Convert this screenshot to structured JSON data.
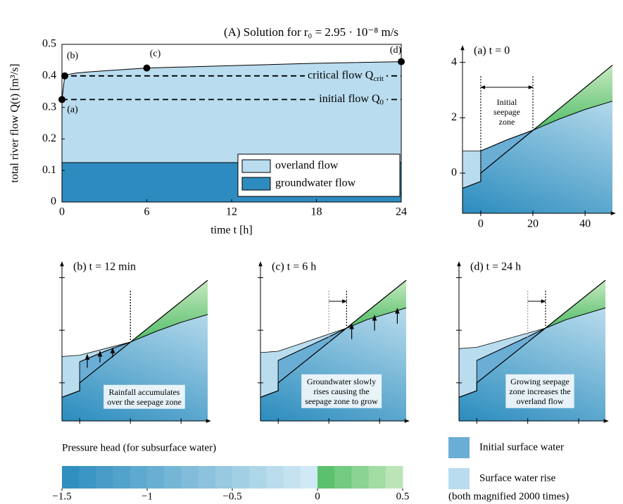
{
  "chart_data": [
    {
      "type": "area",
      "title": "(A) Solution for r₀ = 2.95 · 10⁻⁸ m/s",
      "x_label": "time t [h]",
      "y_label": "total river flow Q(t) [m³/s]",
      "x": [
        0,
        0.2,
        0.5,
        1,
        2,
        4,
        6,
        10,
        14,
        18,
        24
      ],
      "series": [
        {
          "name": "overland flow",
          "color": "#b9dcee",
          "values": [
            0.2,
            0.275,
            0.28,
            0.284,
            0.288,
            0.294,
            0.3,
            0.305,
            0.31,
            0.315,
            0.32
          ]
        },
        {
          "name": "groundwater flow",
          "color": "#2e8bc0",
          "values": [
            0.125,
            0.125,
            0.125,
            0.125,
            0.125,
            0.125,
            0.125,
            0.125,
            0.125,
            0.125,
            0.125
          ]
        }
      ],
      "stacked": true,
      "xlim": [
        0,
        24
      ],
      "ylim": [
        0,
        0.5
      ],
      "xticks": [
        0,
        6,
        12,
        18,
        24
      ],
      "yticks": [
        0,
        0.1,
        0.2,
        0.3,
        0.4,
        0.5
      ],
      "reference_lines": [
        {
          "value": 0.4,
          "label": "critical flow Q",
          "subscript": "crit"
        },
        {
          "value": 0.325,
          "label": "initial flow Q",
          "subscript": "0"
        }
      ],
      "points": [
        {
          "label": "(a)",
          "x": 0,
          "y": 0.325
        },
        {
          "label": "(b)",
          "x": 0.2,
          "y": 0.4
        },
        {
          "label": "(c)",
          "x": 6,
          "y": 0.425
        },
        {
          "label": "(d)",
          "x": 24,
          "y": 0.445
        }
      ],
      "legend": "lower right"
    },
    {
      "type": "profile",
      "title": "(a) t = 0",
      "xlim": [
        -7,
        50.5
      ],
      "ylim": [
        -1.45,
        4.6
      ],
      "xticks": [
        0,
        20,
        40
      ],
      "yticks": [
        0,
        2,
        4
      ],
      "tick_labels": true,
      "terrain": {
        "x": [
          -7,
          0,
          0,
          50.5
        ],
        "y": [
          -0.55,
          -0.3,
          0,
          3.9
        ]
      },
      "water_table": {
        "x": [
          0,
          10,
          20,
          30,
          40,
          50.5
        ],
        "y": [
          0.8,
          1.2,
          1.55,
          1.95,
          2.3,
          2.6
        ]
      },
      "surface_top": {
        "x": [
          -7,
          0
        ],
        "y": [
          0.8,
          0.8
        ]
      },
      "seepage_lines": [
        0,
        20
      ],
      "annotation": [
        "Initial",
        "seepage",
        "zone"
      ]
    },
    {
      "type": "profile",
      "title": "(b) t = 12 min",
      "xlim": [
        -7,
        50.5
      ],
      "ylim": [
        -1.45,
        4.6
      ],
      "xticks": [
        0,
        20,
        40
      ],
      "yticks": [
        0,
        2,
        4
      ],
      "tick_labels": false,
      "terrain": {
        "x": [
          -7,
          0,
          0,
          50.5
        ],
        "y": [
          -0.55,
          -0.3,
          0,
          3.9
        ]
      },
      "water_table": {
        "x": [
          0,
          10,
          20,
          30,
          40,
          50.5
        ],
        "y": [
          0.8,
          1.2,
          1.55,
          1.95,
          2.3,
          2.6
        ]
      },
      "surface_top": {
        "x": [
          -7,
          0,
          20
        ],
        "y": [
          1.0,
          1.05,
          1.55
        ]
      },
      "seepage_lines": [
        20,
        20
      ],
      "annotation": [
        "Rainfall accumulates",
        "over the seepage zone"
      ]
    },
    {
      "type": "profile",
      "title": "(c) t = 6 h",
      "xlim": [
        -7,
        50.5
      ],
      "ylim": [
        -1.45,
        4.6
      ],
      "xticks": [
        0,
        20,
        40
      ],
      "yticks": [
        0,
        2,
        4
      ],
      "tick_labels": false,
      "terrain": {
        "x": [
          -7,
          0,
          0,
          50.5
        ],
        "y": [
          -0.55,
          -0.3,
          0,
          3.9
        ]
      },
      "water_table": {
        "x": [
          0,
          10,
          20,
          27,
          35,
          50.5
        ],
        "y": [
          0.85,
          1.3,
          1.75,
          2.08,
          2.4,
          2.85
        ]
      },
      "surface_top": {
        "x": [
          -7,
          0,
          27
        ],
        "y": [
          1.15,
          1.2,
          2.08
        ]
      },
      "seepage_lines": [
        20,
        27
      ],
      "annotation": [
        "Groundwater slowly",
        "rises causing the",
        "seepage zone to grow"
      ]
    },
    {
      "type": "profile",
      "title": "(d) t = 24 h",
      "xlim": [
        -7,
        50.5
      ],
      "ylim": [
        -1.45,
        4.6
      ],
      "xticks": [
        0,
        20,
        40
      ],
      "yticks": [
        0,
        2,
        4
      ],
      "tick_labels": false,
      "terrain": {
        "x": [
          -7,
          0,
          0,
          50.5
        ],
        "y": [
          -0.55,
          -0.3,
          0,
          3.9
        ]
      },
      "water_table": {
        "x": [
          0,
          10,
          20,
          27,
          35,
          50.5
        ],
        "y": [
          0.85,
          1.3,
          1.75,
          2.08,
          2.4,
          2.85
        ]
      },
      "surface_top": {
        "x": [
          -7,
          0,
          27
        ],
        "y": [
          1.3,
          1.35,
          2.08
        ]
      },
      "seepage_lines": [
        20,
        27
      ],
      "annotation": [
        "Growing seepage",
        "zone increases the",
        "overland flow"
      ]
    },
    {
      "type": "colorbar",
      "title": "Pressure head (for subsurface water)",
      "xlim": [
        -1.5,
        0.5
      ],
      "bins": [
        -1.5,
        -1.4,
        -1.3,
        -1.2,
        -1.1,
        -1,
        -0.9,
        -0.8,
        -0.7,
        -0.6,
        -0.5,
        -0.4,
        -0.3,
        -0.2,
        -0.1,
        0,
        0.1,
        0.2,
        0.3,
        0.4,
        0.5
      ],
      "negative_colors": [
        "#2b8cbe",
        "#d6ecf6"
      ],
      "positive_colors": [
        "#4fbd66",
        "#c7e9c0"
      ],
      "xticks": [
        {
          "value": -1.5,
          "label": "−1.5"
        },
        {
          "value": -1,
          "label": "−1"
        },
        {
          "value": -0.5,
          "label": "−0.5"
        },
        0,
        0.5
      ]
    }
  ],
  "profile_legend": {
    "entries": [
      {
        "name": "Initial surface water",
        "color": "#6aaed6"
      },
      {
        "name": "Surface water rise",
        "color": "#b9dcee"
      }
    ],
    "note": "(both magnified 2000 times)"
  }
}
